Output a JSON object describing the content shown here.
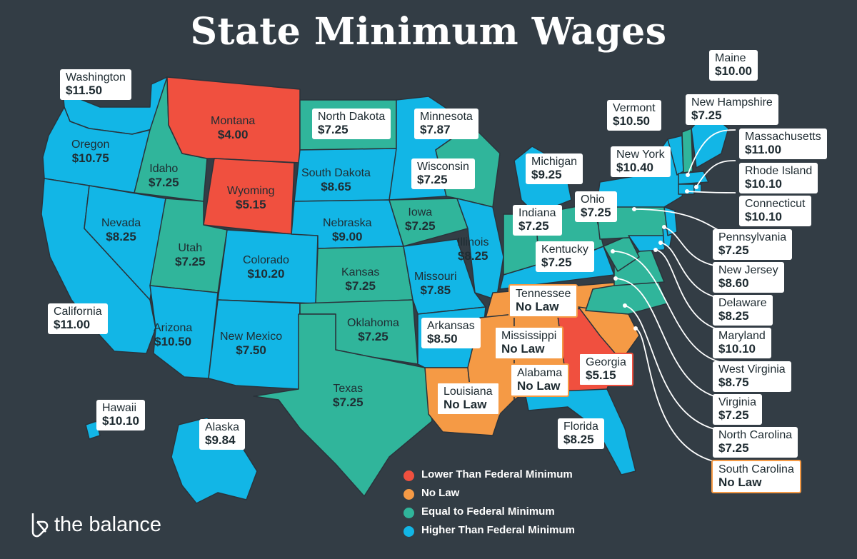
{
  "title": "State Minimum Wages",
  "brand": "the balance",
  "colors": {
    "background": "#333d45",
    "lower": "#f0503f",
    "no_law": "#f59a45",
    "equal": "#30b59b",
    "higher": "#12b6e6"
  },
  "legend": [
    {
      "label": "Lower Than Federal Minimum",
      "color": "#f0503f"
    },
    {
      "label": "No Law",
      "color": "#f59a45"
    },
    {
      "label": "Equal to Federal Minimum",
      "color": "#30b59b"
    },
    {
      "label": "Higher Than Federal Minimum",
      "color": "#12b6e6"
    }
  ],
  "states": {
    "washington": {
      "name": "Washington",
      "wage": "$11.50"
    },
    "oregon": {
      "name": "Oregon",
      "wage": "$10.75"
    },
    "california": {
      "name": "California",
      "wage": "$11.00"
    },
    "nevada": {
      "name": "Nevada",
      "wage": "$8.25"
    },
    "idaho": {
      "name": "Idaho",
      "wage": "$7.25"
    },
    "montana": {
      "name": "Montana",
      "wage": "$4.00"
    },
    "wyoming": {
      "name": "Wyoming",
      "wage": "$5.15"
    },
    "utah": {
      "name": "Utah",
      "wage": "$7.25"
    },
    "arizona": {
      "name": "Arizona",
      "wage": "$10.50"
    },
    "colorado": {
      "name": "Colorado",
      "wage": "$10.20"
    },
    "new_mexico": {
      "name": "New Mexico",
      "wage": "$7.50"
    },
    "north_dakota": {
      "name": "North Dakota",
      "wage": "$7.25"
    },
    "south_dakota": {
      "name": "South Dakota",
      "wage": "$8.65"
    },
    "nebraska": {
      "name": "Nebraska",
      "wage": "$9.00"
    },
    "kansas": {
      "name": "Kansas",
      "wage": "$7.25"
    },
    "oklahoma": {
      "name": "Oklahoma",
      "wage": "$7.25"
    },
    "texas": {
      "name": "Texas",
      "wage": "$7.25"
    },
    "minnesota": {
      "name": "Minnesota",
      "wage": "$7.87"
    },
    "iowa": {
      "name": "Iowa",
      "wage": "$7.25"
    },
    "missouri": {
      "name": "Missouri",
      "wage": "$7.85"
    },
    "arkansas": {
      "name": "Arkansas",
      "wage": "$8.50"
    },
    "louisiana": {
      "name": "Louisiana",
      "wage": "No Law"
    },
    "wisconsin": {
      "name": "Wisconsin",
      "wage": "$7.25"
    },
    "illinois": {
      "name": "Illinois",
      "wage": "$8.25"
    },
    "michigan": {
      "name": "Michigan",
      "wage": "$9.25"
    },
    "indiana": {
      "name": "Indiana",
      "wage": "$7.25"
    },
    "ohio": {
      "name": "Ohio",
      "wage": "$7.25"
    },
    "kentucky": {
      "name": "Kentucky",
      "wage": "$7.25"
    },
    "tennessee": {
      "name": "Tennessee",
      "wage": "No Law"
    },
    "mississippi": {
      "name": "Mississippi",
      "wage": "No Law"
    },
    "alabama": {
      "name": "Alabama",
      "wage": "No Law"
    },
    "georgia": {
      "name": "Georgia",
      "wage": "$5.15"
    },
    "florida": {
      "name": "Florida",
      "wage": "$8.25"
    },
    "hawaii": {
      "name": "Hawaii",
      "wage": "$10.10"
    },
    "alaska": {
      "name": "Alaska",
      "wage": "$9.84"
    },
    "maine": {
      "name": "Maine",
      "wage": "$10.00"
    },
    "vermont": {
      "name": "Vermont",
      "wage": "$10.50"
    },
    "new_hampshire": {
      "name": "New Hampshire",
      "wage": "$7.25"
    },
    "new_york": {
      "name": "New York",
      "wage": "$10.40"
    },
    "massachusetts": {
      "name": "Massachusetts",
      "wage": "$11.00"
    },
    "rhode_island": {
      "name": "Rhode Island",
      "wage": "$10.10"
    },
    "connecticut": {
      "name": "Connecticut",
      "wage": "$10.10"
    },
    "pennsylvania": {
      "name": "Pennsylvania",
      "wage": "$7.25"
    },
    "new_jersey": {
      "name": "New Jersey",
      "wage": "$8.60"
    },
    "delaware": {
      "name": "Delaware",
      "wage": "$8.25"
    },
    "maryland": {
      "name": "Maryland",
      "wage": "$10.10"
    },
    "west_virginia": {
      "name": "West Virginia",
      "wage": "$8.75"
    },
    "virginia": {
      "name": "Virginia",
      "wage": "$7.25"
    },
    "north_carolina": {
      "name": "North Carolina",
      "wage": "$7.25"
    },
    "south_carolina": {
      "name": "South Carolina",
      "wage": "No Law"
    }
  }
}
